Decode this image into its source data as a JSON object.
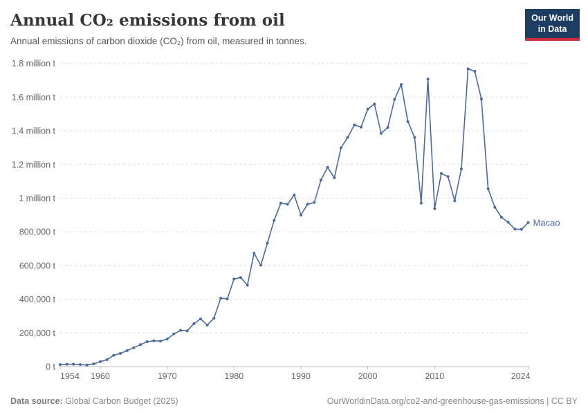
{
  "header": {
    "title": "Annual CO₂ emissions from oil",
    "subtitle": "Annual emissions of carbon dioxide (CO₂) from oil, measured in tonnes.",
    "logo_line1": "Our World",
    "logo_line2": "in Data"
  },
  "footer": {
    "source_label": "Data source:",
    "source_text": " Global Carbon Budget (2025)",
    "credit": "OurWorldinData.org/co2-and-greenhouse-gas-emissions | CC BY"
  },
  "colors": {
    "line": "#4c6a9c",
    "entity_label": "#4c6a9c",
    "gridline": "#dcdcdc",
    "axis_line": "#bbbbbb",
    "tick_text": "#666666",
    "logo_bg": "#1d3d63",
    "logo_red": "#d22b3f"
  },
  "chart_data": {
    "type": "line",
    "title": "Annual CO₂ emissions from oil",
    "entity": "Macao",
    "unit": "t",
    "grid": "horizontal-dashed",
    "legend_position": "end-of-line-label",
    "xlim": [
      1954,
      2024
    ],
    "ylim": [
      0,
      1800000
    ],
    "xticks": [
      1954,
      1960,
      1970,
      1980,
      1990,
      2000,
      2010,
      2024
    ],
    "yticks": [
      {
        "value": 0,
        "label": "0 t"
      },
      {
        "value": 200000,
        "label": "200,000 t"
      },
      {
        "value": 400000,
        "label": "400,000 t"
      },
      {
        "value": 600000,
        "label": "600,000 t"
      },
      {
        "value": 800000,
        "label": "800,000 t"
      },
      {
        "value": 1000000,
        "label": "1 million t"
      },
      {
        "value": 1200000,
        "label": "1.2 million t"
      },
      {
        "value": 1400000,
        "label": "1.4 million t"
      },
      {
        "value": 1600000,
        "label": "1.6 million t"
      },
      {
        "value": 1800000,
        "label": "1.8 million t"
      }
    ],
    "x": [
      1954,
      1955,
      1956,
      1957,
      1958,
      1959,
      1960,
      1961,
      1962,
      1963,
      1964,
      1965,
      1966,
      1967,
      1968,
      1969,
      1970,
      1971,
      1972,
      1973,
      1974,
      1975,
      1976,
      1977,
      1978,
      1979,
      1980,
      1981,
      1982,
      1983,
      1984,
      1985,
      1986,
      1987,
      1988,
      1989,
      1990,
      1991,
      1992,
      1993,
      1994,
      1995,
      1996,
      1997,
      1998,
      1999,
      2000,
      2001,
      2002,
      2003,
      2004,
      2005,
      2006,
      2007,
      2008,
      2009,
      2010,
      2011,
      2012,
      2013,
      2014,
      2015,
      2016,
      2017,
      2018,
      2019,
      2020,
      2021,
      2022,
      2023,
      2024
    ],
    "values": [
      12000,
      14000,
      14000,
      12000,
      9000,
      16000,
      29000,
      41000,
      67000,
      78000,
      95000,
      112000,
      130000,
      148000,
      153000,
      151000,
      163000,
      194000,
      215000,
      212000,
      255000,
      283000,
      246000,
      287000,
      406000,
      402000,
      520000,
      529000,
      483000,
      673000,
      602000,
      734000,
      868000,
      971000,
      964000,
      1019000,
      900000,
      964000,
      974000,
      1108000,
      1183000,
      1121000,
      1299000,
      1361000,
      1435000,
      1422000,
      1529000,
      1559000,
      1385000,
      1420000,
      1586000,
      1675000,
      1455000,
      1361000,
      971000,
      1707000,
      937000,
      1146000,
      1128000,
      985000,
      1173000,
      1768000,
      1753000,
      1589000,
      1056000,
      946000,
      887000,
      857000,
      816000,
      815000,
      855000
    ]
  }
}
